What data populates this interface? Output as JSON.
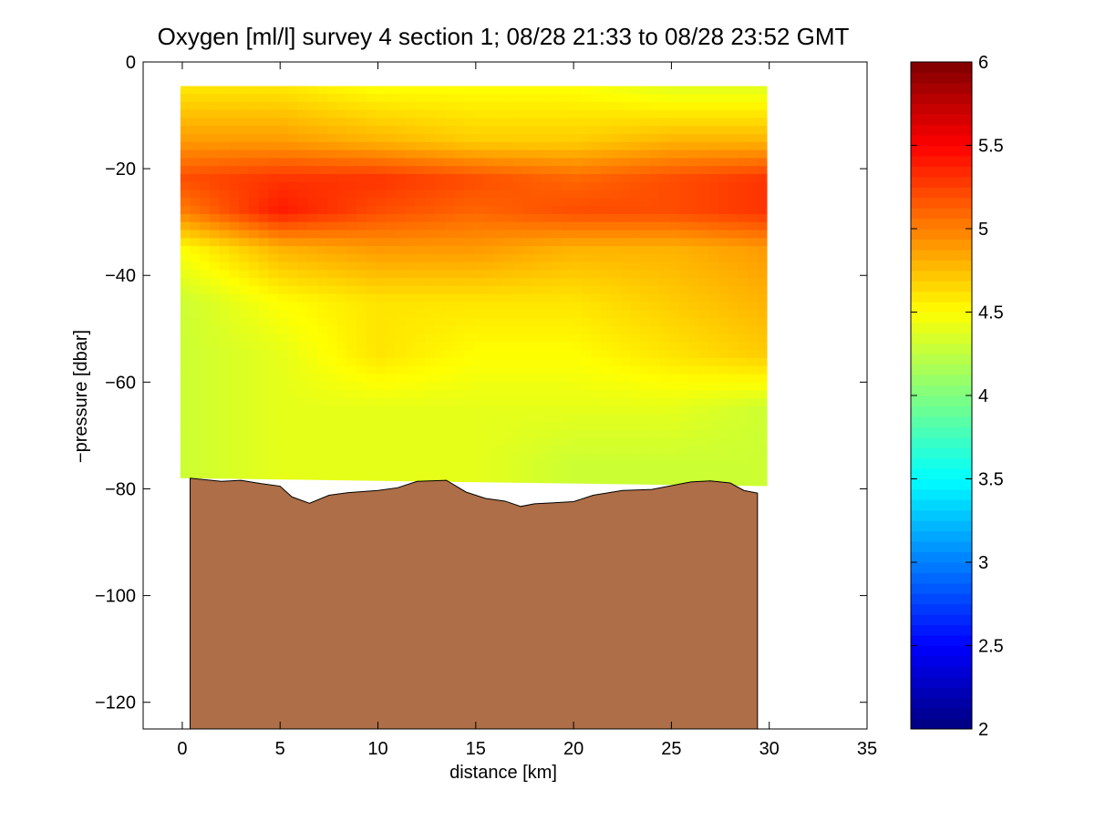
{
  "chart_data": {
    "type": "heatmap",
    "title": "Oxygen [ml/l] survey 4 section 1; 08/28 21:33 to 08/28 23:52 GMT",
    "xlabel": "distance [km]",
    "ylabel": "−pressure [dbar]",
    "xlim": [
      -2,
      35
    ],
    "ylim": [
      -125,
      0
    ],
    "xticks": [
      0,
      5,
      10,
      15,
      20,
      25,
      30,
      35
    ],
    "xtick_labels": [
      "0",
      "5",
      "10",
      "15",
      "20",
      "25",
      "30",
      "35"
    ],
    "yticks": [
      0,
      -20,
      -40,
      -60,
      -80,
      -100,
      -120
    ],
    "ytick_labels": [
      "0",
      "−20",
      "−40",
      "−60",
      "−80",
      "−100",
      "−120"
    ],
    "colorbar": {
      "range": [
        2,
        6
      ],
      "ticks": [
        2,
        2.5,
        3,
        3.5,
        4,
        4.5,
        5,
        5.5,
        6
      ],
      "tick_labels": [
        "2",
        "2.5",
        "3",
        "3.5",
        "4",
        "4.5",
        "5",
        "5.5",
        "6"
      ],
      "colormap": "jet"
    },
    "field": {
      "x_km": [
        0,
        5,
        10,
        15,
        20,
        25,
        30
      ],
      "neg_pressure_dbar": [
        -5,
        -15,
        -22,
        -28,
        -35,
        -45,
        -55,
        -65,
        -75
      ],
      "oxygen_ml_per_l": [
        [
          4.6,
          4.6,
          4.5,
          4.5,
          4.5,
          4.4,
          4.4
        ],
        [
          4.9,
          4.9,
          4.8,
          4.7,
          4.7,
          4.8,
          4.8
        ],
        [
          5.2,
          5.3,
          5.3,
          5.2,
          5.1,
          5.2,
          5.3
        ],
        [
          5.0,
          5.4,
          5.2,
          5.1,
          5.2,
          5.2,
          5.3
        ],
        [
          4.5,
          4.8,
          4.9,
          4.9,
          4.8,
          4.8,
          4.9
        ],
        [
          4.3,
          4.5,
          4.6,
          4.6,
          4.6,
          4.7,
          4.8
        ],
        [
          4.3,
          4.4,
          4.6,
          4.5,
          4.5,
          4.6,
          4.7
        ],
        [
          4.3,
          4.4,
          4.4,
          4.4,
          4.4,
          4.4,
          4.3
        ],
        [
          4.3,
          4.4,
          4.4,
          4.4,
          4.3,
          4.3,
          4.3
        ]
      ]
    },
    "data_extent": {
      "x_start_km": -0.1,
      "x_end_km": 29.9,
      "top_neg_pressure_dbar": -4.5,
      "bottom_left_neg_pressure_dbar": -78,
      "bottom_right_neg_pressure_dbar": -79.5
    },
    "bathymetry": {
      "color": "#AD6E48",
      "x_km": [
        0.4,
        2.0,
        3.0,
        4.0,
        5.0,
        5.6,
        6.5,
        7.5,
        8.5,
        10.0,
        11.0,
        12.0,
        13.5,
        14.5,
        15.5,
        16.5,
        17.3,
        18.0,
        19.0,
        20.0,
        21.0,
        22.5,
        24.0,
        25.0,
        26.0,
        27.0,
        28.0,
        28.7,
        29.4
      ],
      "neg_pressure_dbar": [
        -78,
        -78.6,
        -78.4,
        -79,
        -79.5,
        -81.5,
        -82.7,
        -81.2,
        -80.7,
        -80.3,
        -79.8,
        -78.6,
        -78.4,
        -80.6,
        -81.8,
        -82.3,
        -83.3,
        -82.8,
        -82.6,
        -82.4,
        -81.2,
        -80.3,
        -80.1,
        -79.4,
        -78.7,
        -78.5,
        -78.9,
        -80.3,
        -80.8
      ]
    }
  }
}
